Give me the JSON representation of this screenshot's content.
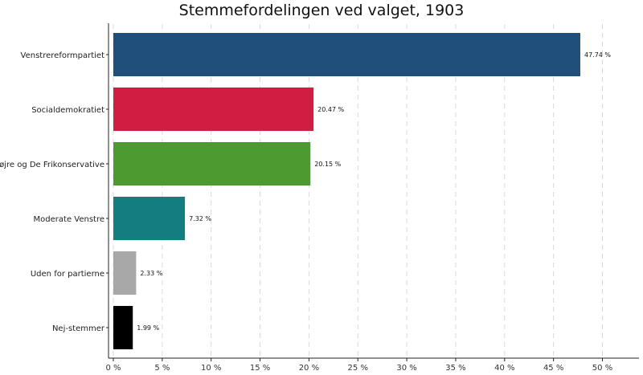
{
  "chart_data": {
    "type": "bar",
    "orientation": "horizontal",
    "title": "Stemmefordelingen ved valget, 1903",
    "xlabel": "",
    "ylabel": "",
    "xlim": [
      0,
      52.5
    ],
    "x_ticks": [
      0,
      5,
      10,
      15,
      20,
      25,
      30,
      35,
      40,
      45,
      50
    ],
    "x_tick_labels": [
      "0 %",
      "5 %",
      "10 %",
      "15 %",
      "20 %",
      "25 %",
      "30 %",
      "35 %",
      "40 %",
      "45 %",
      "50 %"
    ],
    "grid": "vertical-dashed",
    "categories": [
      "Venstrereformpartiet",
      "Socialdemokratiet",
      "Højre og De Frikonservative",
      "Moderate Venstre",
      "Uden for partierne",
      "Nej-stemmer"
    ],
    "values": [
      47.74,
      20.47,
      20.15,
      7.32,
      2.33,
      1.99
    ],
    "value_labels": [
      "47.74 %",
      "20.47 %",
      "20.15 %",
      "7.32 %",
      "2.33 %",
      "1.99 %"
    ],
    "colors": [
      "#204f7c",
      "#d11d41",
      "#4d9a31",
      "#147d80",
      "#a8a8a8",
      "#000000"
    ]
  }
}
